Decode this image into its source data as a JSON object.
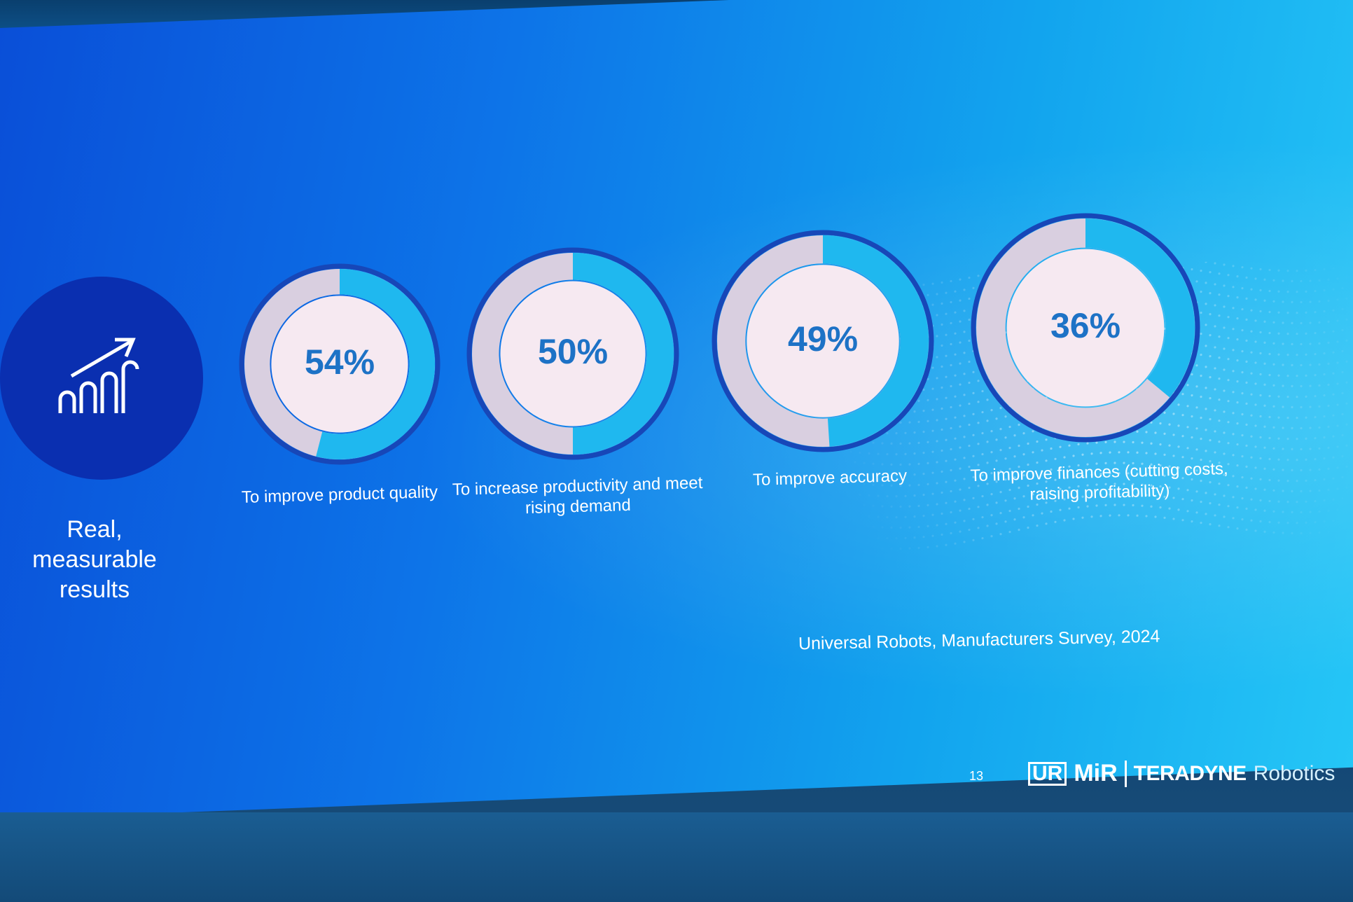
{
  "tagline": "Real, measurable results",
  "icon": "growth-chart-icon",
  "colors": {
    "accent": "#1fb8ef",
    "ring_track": "#d9cfe0",
    "ring_border": "#1747b8",
    "center": "#f6e9f1",
    "value_text": "#1d72c6"
  },
  "chart_data": {
    "type": "pie",
    "subtype": "donut",
    "items": [
      {
        "value": 54,
        "value_label": "54%",
        "label": "To improve product quality"
      },
      {
        "value": 50,
        "value_label": "50%",
        "label": "To increase productivity and meet rising demand"
      },
      {
        "value": 49,
        "value_label": "49%",
        "label": "To improve accuracy"
      },
      {
        "value": 36,
        "value_label": "36%",
        "label": "To improve finances (cutting costs, raising profitability)"
      }
    ]
  },
  "source": "Universal Robots, Manufacturers Survey, 2024",
  "footer": {
    "page_number": "13",
    "logo_ur": "UR",
    "logo_mir": "MiR",
    "logo_teradyne": "TERADYNE",
    "logo_robotics": "Robotics"
  }
}
